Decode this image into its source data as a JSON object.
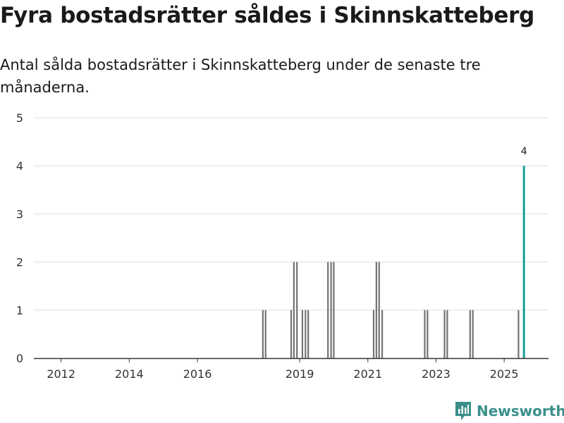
{
  "title": "Fyra bostadsrätter såldes i Skinnskatteberg",
  "subtitle": "Antal sålda bostadsrätter i Skinnskatteberg under de senaste tre månaderna.",
  "brand": {
    "name": "Newsworthy",
    "icon": "newsworthy-chart-logo-icon"
  },
  "colors": {
    "bar": "#737373",
    "highlight": "#17a193",
    "grid": "#dddddd",
    "axis": "#333333",
    "brand": "#3a8f8b"
  },
  "chart_data": {
    "type": "bar",
    "title": "Fyra bostadsrätter såldes i Skinnskatteberg",
    "xlabel": "",
    "ylabel": "",
    "ylim": [
      0,
      5
    ],
    "xlim": [
      2011.2,
      2026.3
    ],
    "grid": true,
    "y_ticks": [
      0,
      1,
      2,
      3,
      4,
      5
    ],
    "x_ticks": [
      2012,
      2014,
      2016,
      2019,
      2021,
      2023,
      2025
    ],
    "series": [
      {
        "name": "Sålda bostadsrätter",
        "x": [
          2017.92,
          2018.0,
          2018.75,
          2018.83,
          2018.92,
          2019.08,
          2019.17,
          2019.25,
          2019.83,
          2019.92,
          2020.0,
          2021.17,
          2021.25,
          2021.33,
          2021.42,
          2022.67,
          2022.75,
          2023.25,
          2023.33,
          2024.0,
          2024.08,
          2025.42
        ],
        "values": [
          1,
          1,
          1,
          2,
          2,
          1,
          1,
          1,
          2,
          2,
          2,
          1,
          2,
          2,
          1,
          1,
          1,
          1,
          1,
          1,
          1,
          1
        ]
      }
    ],
    "highlight": {
      "x": 2025.58,
      "value": 4,
      "label": "4"
    }
  }
}
